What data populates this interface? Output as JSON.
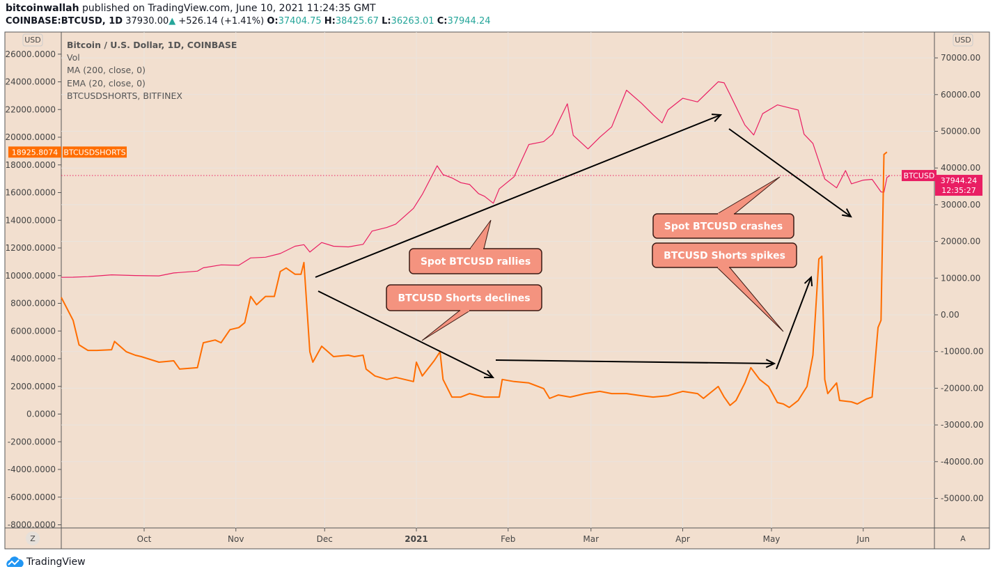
{
  "header": {
    "author": "bitcoinwallah",
    "published_text": "published on TradingView.com, June 10, 2021 11:24:35 GMT",
    "symbol": "COINBASE:BTCUSD, 1D",
    "last": "37930.00",
    "change": "+526.14 (+1.41%)",
    "o_label": "O:",
    "o": "37404.75",
    "h_label": "H:",
    "h": "38425.67",
    "l_label": "L:",
    "l": "36263.01",
    "c_label": "C:",
    "c": "37944.24"
  },
  "legend": [
    "Bitcoin / U.S. Dollar, 1D, COINBASE",
    "Vol",
    "MA (200, close, 0)",
    "EMA (20, close, 0)",
    "BTCUSDSHORTS, BITFINEX"
  ],
  "axis_left_unit": "USD",
  "axis_right_unit": "USD",
  "z_button": "Z",
  "a_button": "A",
  "footer_brand": "TradingView",
  "tags": {
    "shorts_value": "18925.8074",
    "shorts_name": "BTCUSDSHORTS",
    "btc_name": "BTCUSD",
    "btc_value": "37944.24",
    "btc_countdown": "12:35:27"
  },
  "annotations": [
    "Spot BTCUSD rallies",
    "BTCUSD Shorts declines",
    "Spot BTCUSD crashes",
    "BTCUSD Shorts spikes"
  ],
  "colors": {
    "background": "#f2dfcf",
    "btcusd": "#e91e63",
    "shorts": "#ff6d00",
    "callout": "#f4937f",
    "change_up": "#26a69a"
  },
  "chart_data": {
    "type": "line",
    "x_ticks": [
      "Oct",
      "Nov",
      "Dec",
      "2021",
      "Feb",
      "Mar",
      "Apr",
      "May",
      "Jun"
    ],
    "y_left_ticks": [
      "26000.0000",
      "24000.0000",
      "22000.0000",
      "20000.0000",
      "18000.0000",
      "16000.0000",
      "14000.0000",
      "12000.0000",
      "10000.0000",
      "8000.0000",
      "6000.0000",
      "4000.0000",
      "2000.0000",
      "0.0000",
      "-2000.0000",
      "-4000.0000",
      "-6000.0000",
      "-8000.0000"
    ],
    "y_right_ticks": [
      "70000.00",
      "60000.00",
      "50000.00",
      "40000.00",
      "30000.00",
      "20000.00",
      "10000.00",
      "0.00",
      "-10000.00",
      "-20000.00",
      "-30000.00",
      "-40000.00",
      "-50000.00"
    ],
    "ylim_left": [
      -8000,
      26000
    ],
    "ylim_right": [
      -50000,
      70000
    ],
    "grid": true,
    "series": [
      {
        "name": "BTCUSD",
        "axis": "right",
        "points": [
          [
            "2020-09-03",
            10200
          ],
          [
            "2020-09-07",
            10250
          ],
          [
            "2020-09-12",
            10400
          ],
          [
            "2020-09-20",
            10900
          ],
          [
            "2020-09-28",
            10700
          ],
          [
            "2020-10-06",
            10600
          ],
          [
            "2020-10-11",
            11400
          ],
          [
            "2020-10-19",
            11900
          ],
          [
            "2020-10-21",
            12800
          ],
          [
            "2020-10-27",
            13600
          ],
          [
            "2020-11-02",
            13500
          ],
          [
            "2020-11-06",
            15500
          ],
          [
            "2020-11-11",
            15700
          ],
          [
            "2020-11-16",
            16700
          ],
          [
            "2020-11-21",
            18700
          ],
          [
            "2020-11-24",
            19100
          ],
          [
            "2020-11-26",
            17100
          ],
          [
            "2020-11-30",
            19700
          ],
          [
            "2020-12-04",
            18700
          ],
          [
            "2020-12-09",
            18500
          ],
          [
            "2020-12-14",
            19200
          ],
          [
            "2020-12-17",
            22800
          ],
          [
            "2020-12-22",
            23800
          ],
          [
            "2020-12-25",
            24700
          ],
          [
            "2020-12-31",
            29000
          ],
          [
            "2021-01-03",
            32800
          ],
          [
            "2021-01-08",
            40600
          ],
          [
            "2021-01-10",
            38200
          ],
          [
            "2021-01-13",
            37300
          ],
          [
            "2021-01-16",
            36000
          ],
          [
            "2021-01-19",
            35500
          ],
          [
            "2021-01-22",
            33000
          ],
          [
            "2021-01-24",
            32300
          ],
          [
            "2021-01-27",
            30400
          ],
          [
            "2021-01-29",
            34300
          ],
          [
            "2021-02-03",
            37600
          ],
          [
            "2021-02-08",
            46400
          ],
          [
            "2021-02-13",
            47200
          ],
          [
            "2021-02-16",
            49200
          ],
          [
            "2021-02-21",
            57500
          ],
          [
            "2021-02-23",
            48900
          ],
          [
            "2021-02-28",
            45200
          ],
          [
            "2021-03-04",
            48400
          ],
          [
            "2021-03-08",
            51200
          ],
          [
            "2021-03-13",
            61200
          ],
          [
            "2021-03-18",
            57700
          ],
          [
            "2021-03-22",
            54500
          ],
          [
            "2021-03-25",
            52300
          ],
          [
            "2021-03-27",
            55800
          ],
          [
            "2021-04-01",
            59000
          ],
          [
            "2021-04-06",
            58000
          ],
          [
            "2021-04-13",
            63500
          ],
          [
            "2021-04-15",
            63200
          ],
          [
            "2021-04-17",
            60000
          ],
          [
            "2021-04-22",
            51700
          ],
          [
            "2021-04-25",
            49000
          ],
          [
            "2021-04-28",
            54800
          ],
          [
            "2021-05-03",
            57200
          ],
          [
            "2021-05-07",
            56400
          ],
          [
            "2021-05-10",
            55800
          ],
          [
            "2021-05-12",
            49200
          ],
          [
            "2021-05-15",
            46700
          ],
          [
            "2021-05-19",
            37000
          ],
          [
            "2021-05-23",
            34600
          ],
          [
            "2021-05-26",
            39300
          ],
          [
            "2021-05-28",
            35700
          ],
          [
            "2021-06-01",
            36700
          ],
          [
            "2021-06-04",
            36900
          ],
          [
            "2021-06-07",
            33500
          ],
          [
            "2021-06-08",
            33400
          ],
          [
            "2021-06-09",
            37400
          ],
          [
            "2021-06-10",
            37944
          ]
        ]
      },
      {
        "name": "BTCUSDSHORTS",
        "axis": "left",
        "points": [
          [
            "2020-09-03",
            8430
          ],
          [
            "2020-09-07",
            6770
          ],
          [
            "2020-09-09",
            5000
          ],
          [
            "2020-09-12",
            4600
          ],
          [
            "2020-09-15",
            4600
          ],
          [
            "2020-09-20",
            4650
          ],
          [
            "2020-09-21",
            5250
          ],
          [
            "2020-09-25",
            4500
          ],
          [
            "2020-09-28",
            4250
          ],
          [
            "2020-09-30",
            4150
          ],
          [
            "2020-10-06",
            3750
          ],
          [
            "2020-10-11",
            3850
          ],
          [
            "2020-10-13",
            3250
          ],
          [
            "2020-10-19",
            3350
          ],
          [
            "2020-10-21",
            5150
          ],
          [
            "2020-10-25",
            5350
          ],
          [
            "2020-10-27",
            5150
          ],
          [
            "2020-10-30",
            6100
          ],
          [
            "2020-11-02",
            6250
          ],
          [
            "2020-11-04",
            6600
          ],
          [
            "2020-11-06",
            8500
          ],
          [
            "2020-11-08",
            7900
          ],
          [
            "2020-11-11",
            8500
          ],
          [
            "2020-11-14",
            8500
          ],
          [
            "2020-11-16",
            10300
          ],
          [
            "2020-11-18",
            10550
          ],
          [
            "2020-11-21",
            10100
          ],
          [
            "2020-11-23",
            10100
          ],
          [
            "2020-11-24",
            10950
          ],
          [
            "2020-11-26",
            4500
          ],
          [
            "2020-11-27",
            3750
          ],
          [
            "2020-11-30",
            4900
          ],
          [
            "2020-12-04",
            4150
          ],
          [
            "2020-12-09",
            4250
          ],
          [
            "2020-12-11",
            4150
          ],
          [
            "2020-12-14",
            4250
          ],
          [
            "2020-12-15",
            3250
          ],
          [
            "2020-12-18",
            2750
          ],
          [
            "2020-12-22",
            2500
          ],
          [
            "2020-12-25",
            2650
          ],
          [
            "2020-12-31",
            2350
          ],
          [
            "2021-01-01",
            3750
          ],
          [
            "2021-01-03",
            2750
          ],
          [
            "2021-01-07",
            3850
          ],
          [
            "2021-01-09",
            4500
          ],
          [
            "2021-01-10",
            2500
          ],
          [
            "2021-01-13",
            1230
          ],
          [
            "2021-01-16",
            1230
          ],
          [
            "2021-01-19",
            1480
          ],
          [
            "2021-01-24",
            1230
          ],
          [
            "2021-01-29",
            1230
          ],
          [
            "2021-01-30",
            2500
          ],
          [
            "2021-02-03",
            2350
          ],
          [
            "2021-02-08",
            2250
          ],
          [
            "2021-02-13",
            1840
          ],
          [
            "2021-02-15",
            1130
          ],
          [
            "2021-02-18",
            1380
          ],
          [
            "2021-02-22",
            1230
          ],
          [
            "2021-02-27",
            1480
          ],
          [
            "2021-03-04",
            1640
          ],
          [
            "2021-03-08",
            1480
          ],
          [
            "2021-03-13",
            1480
          ],
          [
            "2021-03-18",
            1330
          ],
          [
            "2021-03-22",
            1230
          ],
          [
            "2021-03-27",
            1330
          ],
          [
            "2021-04-01",
            1640
          ],
          [
            "2021-04-06",
            1480
          ],
          [
            "2021-04-08",
            1130
          ],
          [
            "2021-04-13",
            1990
          ],
          [
            "2021-04-15",
            1230
          ],
          [
            "2021-04-17",
            630
          ],
          [
            "2021-04-19",
            980
          ],
          [
            "2021-04-22",
            2250
          ],
          [
            "2021-04-24",
            3350
          ],
          [
            "2021-04-27",
            2500
          ],
          [
            "2021-04-30",
            1990
          ],
          [
            "2021-05-03",
            830
          ],
          [
            "2021-05-05",
            730
          ],
          [
            "2021-05-07",
            480
          ],
          [
            "2021-05-10",
            980
          ],
          [
            "2021-05-13",
            1990
          ],
          [
            "2021-05-15",
            4250
          ],
          [
            "2021-05-17",
            11200
          ],
          [
            "2021-05-18",
            11400
          ],
          [
            "2021-05-19",
            2500
          ],
          [
            "2021-05-20",
            1480
          ],
          [
            "2021-05-23",
            2250
          ],
          [
            "2021-05-24",
            980
          ],
          [
            "2021-05-28",
            880
          ],
          [
            "2021-05-30",
            730
          ],
          [
            "2021-06-02",
            1080
          ],
          [
            "2021-06-04",
            1230
          ],
          [
            "2021-06-06",
            6250
          ],
          [
            "2021-06-07",
            6770
          ],
          [
            "2021-06-08",
            18750
          ],
          [
            "2021-06-09",
            18926
          ]
        ]
      }
    ]
  }
}
